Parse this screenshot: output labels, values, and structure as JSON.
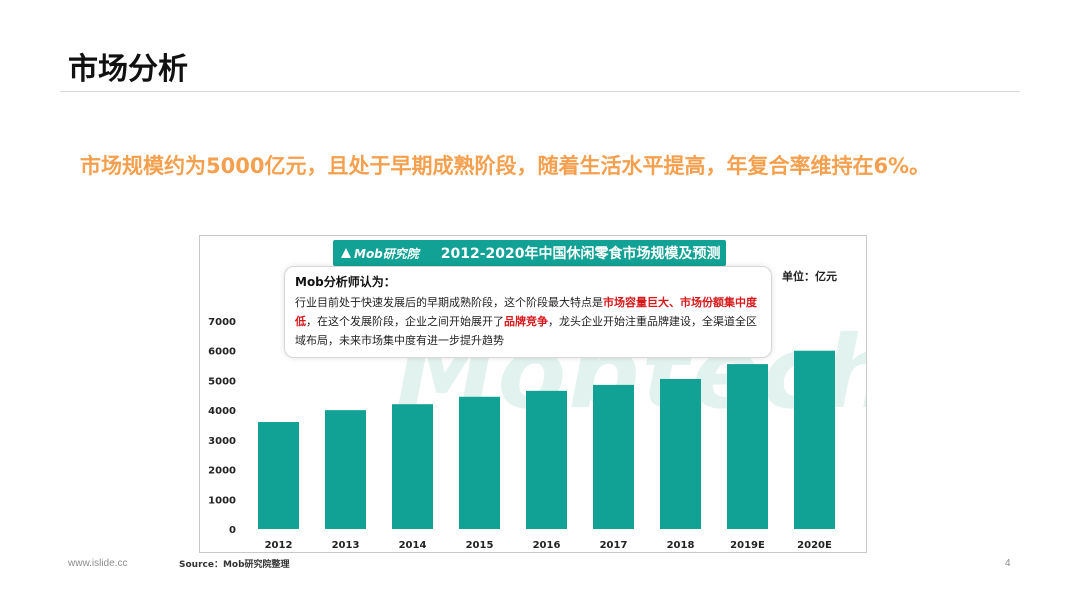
{
  "slide": {
    "title": "市场分析",
    "headline": "市场规模约为5000亿元，且处于早期成熟阶段，随着生活水平提高，年复合率维持在6%。",
    "footer_url": "www.islide.cc",
    "page_number": "4"
  },
  "figure": {
    "logo_text": "Mob研究院",
    "watermark": "Mobtech",
    "unit": "单位：亿元",
    "source": "Source：Mob研究院整理",
    "analyst": {
      "heading": "Mob分析师认为：",
      "seg1": "行业目前处于快速发展后的早期成熟阶段，这个阶段最大特点是",
      "hl1": "市场容量巨大、市场份额集中度低",
      "seg2": "，在这个发展阶段，企业之间开始展开了",
      "hl2": "品牌竞争",
      "seg3": "，龙头企业开始注重品牌建设，全渠道全区域布局，未来市场集中度有进一步提升趋势"
    },
    "colors": {
      "bar": "#12a295",
      "highlight": "#d7191c",
      "headline": "#f5a04f"
    }
  },
  "chart_data": {
    "type": "bar",
    "title": "2012-2020年中国休闲零食市场规模及预测",
    "categories": [
      "2012",
      "2013",
      "2014",
      "2015",
      "2016",
      "2017",
      "2018",
      "2019E",
      "2020E"
    ],
    "values": [
      3600,
      4000,
      4200,
      4450,
      4650,
      4850,
      5050,
      5550,
      6000
    ],
    "yticks": [
      "0",
      "1000",
      "2000",
      "3000",
      "4000",
      "5000",
      "6000",
      "7000"
    ],
    "ylim": [
      0,
      7000
    ],
    "grid": false,
    "legend": "none"
  }
}
